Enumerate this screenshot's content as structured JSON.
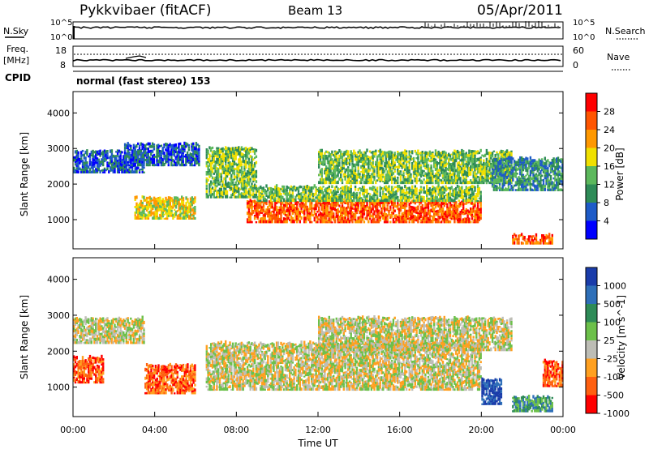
{
  "header": {
    "radar": "Pykkvibaer (fitACF)",
    "beam": "Beam 13",
    "date": "05/Apr/2011"
  },
  "top_panels": {
    "nsky_label": "N.Sky",
    "nsky_ticks": [
      "10^5",
      "10^0"
    ],
    "nsearch_ticks": [
      "10^5",
      "10^0"
    ],
    "nsearch_label": "N.Search",
    "freq_label": "Freq.",
    "freq_unit": "[MHz]",
    "freq_ticks": [
      "18",
      "8"
    ],
    "nave_ticks": [
      "60",
      "0"
    ],
    "nave_label": "Nave",
    "cpid_label": "CPID",
    "cpid_value": "normal (fast stereo) 153"
  },
  "colors": {
    "scatter_gray": "#bdbdb5",
    "nave_color": "#000000"
  },
  "chart_data": [
    {
      "type": "heatmap",
      "quantity": "Power",
      "ylabel": "Slant Range [km]",
      "yticks": [
        "1000",
        "2000",
        "3000",
        "4000"
      ],
      "ylim": [
        180,
        4600
      ],
      "xlim": [
        0,
        24
      ],
      "colorbar": {
        "label": "Power [dB]",
        "ticks": [
          "4",
          "8",
          "12",
          "16",
          "20",
          "24",
          "28"
        ],
        "colors": [
          "#0000ff",
          "#1e5bc8",
          "#2e8b57",
          "#5cb85c",
          "#f0e000",
          "#ff9800",
          "#ff5500",
          "#ff0000"
        ]
      },
      "echo_bands": [
        {
          "t0": 0.0,
          "t1": 3.5,
          "r0": 2300,
          "r1": 2900,
          "level": 1
        },
        {
          "t0": 2.5,
          "t1": 6.2,
          "r0": 2500,
          "r1": 3100,
          "level": 1
        },
        {
          "t0": 3.0,
          "t1": 6.0,
          "r0": 1000,
          "r1": 1600,
          "level": 4
        },
        {
          "t0": 6.5,
          "t1": 9.0,
          "r0": 1600,
          "r1": 3000,
          "level": 3
        },
        {
          "t0": 8.5,
          "t1": 20.0,
          "r0": 900,
          "r1": 1500,
          "level": 6
        },
        {
          "t0": 9.0,
          "t1": 20.0,
          "r0": 1500,
          "r1": 1900,
          "level": 3
        },
        {
          "t0": 12.0,
          "t1": 21.5,
          "r0": 2000,
          "r1": 2900,
          "level": 3
        },
        {
          "t0": 20.5,
          "t1": 24.0,
          "r0": 1800,
          "r1": 2700,
          "level": 2
        },
        {
          "t0": 21.5,
          "t1": 23.5,
          "r0": 300,
          "r1": 550,
          "level": 6
        }
      ]
    },
    {
      "type": "heatmap",
      "quantity": "Velocity",
      "ylabel": "Slant Range [km]",
      "yticks": [
        "1000",
        "2000",
        "3000",
        "4000"
      ],
      "ylim": [
        180,
        4600
      ],
      "xlim": [
        0,
        24
      ],
      "xticks": [
        "00:00",
        "04:00",
        "08:00",
        "12:00",
        "16:00",
        "20:00",
        "00:00"
      ],
      "xlabel": "Time UT",
      "colorbar": {
        "label": "Velocity [m s^-1]",
        "ticks": [
          "1000",
          "500",
          "100",
          "25",
          "-25",
          "-100",
          "-500",
          "-1000"
        ],
        "colors": [
          "#1a3caa",
          "#2e6fb8",
          "#2e8b57",
          "#6cc04a",
          "#bdbdb5",
          "#ffa020",
          "#ff6010",
          "#ff0000"
        ]
      },
      "echo_bands": [
        {
          "t0": 0.0,
          "t1": 3.5,
          "r0": 2200,
          "r1": 2900,
          "level": 4
        },
        {
          "t0": 0.0,
          "t1": 1.5,
          "r0": 1100,
          "r1": 1800,
          "level": 6
        },
        {
          "t0": 3.5,
          "t1": 6.0,
          "r0": 800,
          "r1": 1600,
          "level": 6
        },
        {
          "t0": 6.5,
          "t1": 20.0,
          "r0": 900,
          "r1": 2200,
          "level": 4
        },
        {
          "t0": 12.0,
          "t1": 21.5,
          "r0": 2000,
          "r1": 2900,
          "level": 4
        },
        {
          "t0": 20.0,
          "t1": 21.0,
          "r0": 500,
          "r1": 1200,
          "level": 0
        },
        {
          "t0": 21.5,
          "t1": 23.5,
          "r0": 300,
          "r1": 700,
          "level": 2
        },
        {
          "t0": 23.0,
          "t1": 24.0,
          "r0": 1000,
          "r1": 1700,
          "level": 6
        }
      ]
    }
  ]
}
